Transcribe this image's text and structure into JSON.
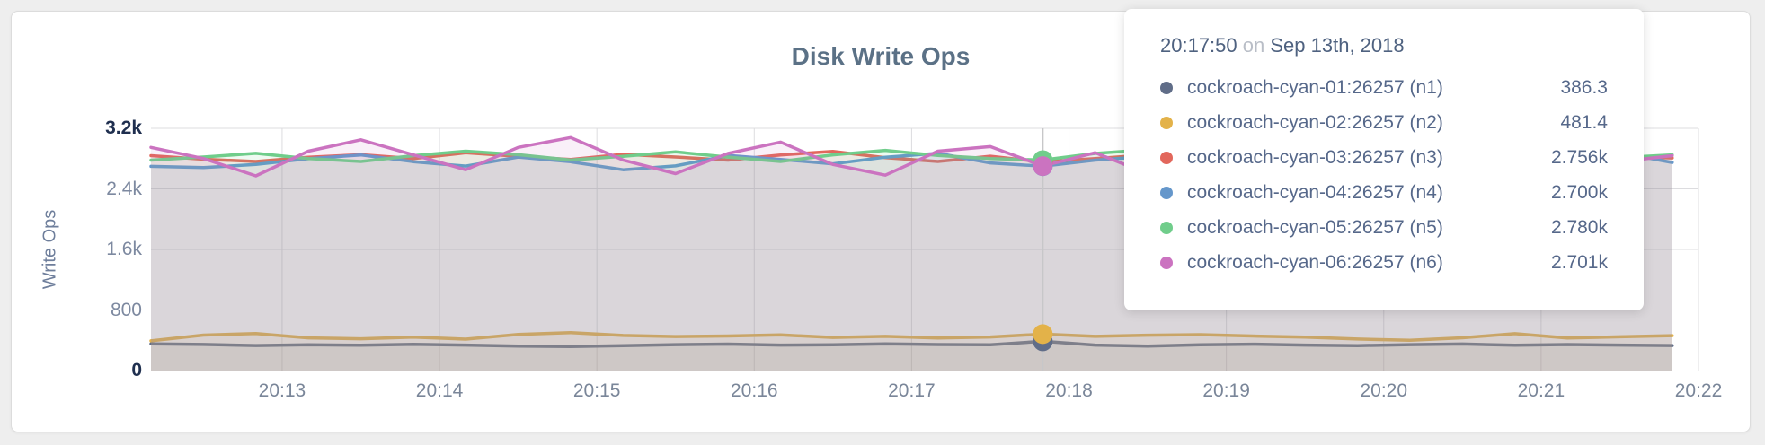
{
  "colors": {
    "page_bg": "#eeeeee",
    "card_bg": "#ffffff",
    "card_border": "#dcdcdc",
    "title_text": "#5b7186",
    "tick_text": "#7a8699",
    "tick_text_dark": "#1f2f4f",
    "grid": "#dcdcdf",
    "guideline": "#c7c7c9",
    "fill_opacity": 0.11
  },
  "chart_data": {
    "type": "line",
    "title": "Disk Write Ops",
    "ylabel": "Write Ops",
    "ylim": [
      0,
      3200
    ],
    "grid": true,
    "legend_position": "tooltip",
    "yticks": [
      {
        "label": "0",
        "value": 0,
        "emph": true
      },
      {
        "label": "800",
        "value": 800,
        "emph": false
      },
      {
        "label": "1.6k",
        "value": 1600,
        "emph": false
      },
      {
        "label": "2.4k",
        "value": 2400,
        "emph": false
      },
      {
        "label": "3.2k",
        "value": 3200,
        "emph": true
      }
    ],
    "xticks": [
      {
        "label": "20:13",
        "t": 50
      },
      {
        "label": "20:14",
        "t": 110
      },
      {
        "label": "20:15",
        "t": 170
      },
      {
        "label": "20:16",
        "t": 230
      },
      {
        "label": "20:17",
        "t": 290
      },
      {
        "label": "20:18",
        "t": 350
      },
      {
        "label": "20:19",
        "t": 410
      },
      {
        "label": "20:20",
        "t": 470
      },
      {
        "label": "20:21",
        "t": 530
      },
      {
        "label": "20:22",
        "t": 590
      }
    ],
    "x_domain_seconds": [
      0,
      590
    ],
    "t_start": 0,
    "t_step": 20,
    "hover": {
      "t": 340,
      "index": 17,
      "time": "20:17:50",
      "conjunction": "on",
      "date": "Sep 13th, 2018"
    },
    "series": [
      {
        "name": "cockroach-cyan-01:26257 (n1)",
        "color": "#606d88",
        "hover_label": "386.3",
        "values": [
          352,
          345,
          331,
          340,
          334,
          346,
          336,
          322,
          318,
          330,
          342,
          350,
          336,
          341,
          352,
          344,
          340,
          386.3,
          336,
          323,
          341,
          348,
          337,
          330,
          343,
          351,
          334,
          344,
          337,
          331
        ]
      },
      {
        "name": "cockroach-cyan-02:26257 (n2)",
        "color": "#e3b249",
        "hover_label": "481.4",
        "values": [
          392,
          468,
          489,
          432,
          419,
          441,
          415,
          477,
          501,
          463,
          449,
          456,
          471,
          437,
          452,
          429,
          443,
          481.4,
          451,
          467,
          474,
          456,
          441,
          416,
          399,
          433,
          487,
          429,
          446,
          461
        ]
      },
      {
        "name": "cockroach-cyan-03:26257 (n3)",
        "color": "#e2675c",
        "hover_label": "2.756k",
        "values": [
          2838,
          2791,
          2762,
          2818,
          2851,
          2799,
          2877,
          2829,
          2788,
          2856,
          2821,
          2779,
          2848,
          2896,
          2812,
          2761,
          2832,
          2756,
          2801,
          2849,
          2791,
          2838,
          2879,
          2798,
          2762,
          2821,
          2868,
          2791,
          2829,
          2808
        ]
      },
      {
        "name": "cockroach-cyan-04:26257 (n4)",
        "color": "#6597cb",
        "hover_label": "2.700k",
        "values": [
          2698,
          2681,
          2722,
          2798,
          2848,
          2759,
          2701,
          2819,
          2758,
          2652,
          2703,
          2841,
          2789,
          2731,
          2818,
          2869,
          2742,
          2700,
          2779,
          2829,
          2698,
          2761,
          2808,
          2679,
          2741,
          2858,
          2779,
          2702,
          2876,
          2748
        ]
      },
      {
        "name": "cockroach-cyan-05:26257 (n5)",
        "color": "#70cd8b",
        "hover_label": "2.780k",
        "values": [
          2779,
          2821,
          2869,
          2801,
          2762,
          2839,
          2898,
          2851,
          2781,
          2829,
          2888,
          2819,
          2761,
          2849,
          2908,
          2841,
          2799,
          2780,
          2868,
          2918,
          2829,
          2781,
          2851,
          2898,
          2819,
          2771,
          2841,
          2888,
          2811,
          2849
        ]
      },
      {
        "name": "cockroach-cyan-06:26257 (n6)",
        "color": "#cb73c0",
        "hover_label": "2.701k",
        "values": [
          2948,
          2801,
          2572,
          2898,
          3048,
          2849,
          2652,
          2948,
          3078,
          2781,
          2602,
          2868,
          3018,
          2722,
          2581,
          2898,
          2958,
          2701,
          2878,
          2602,
          2758,
          2938,
          2652,
          2818,
          3058,
          2702,
          2592,
          2918,
          2758,
          2838
        ]
      }
    ]
  }
}
